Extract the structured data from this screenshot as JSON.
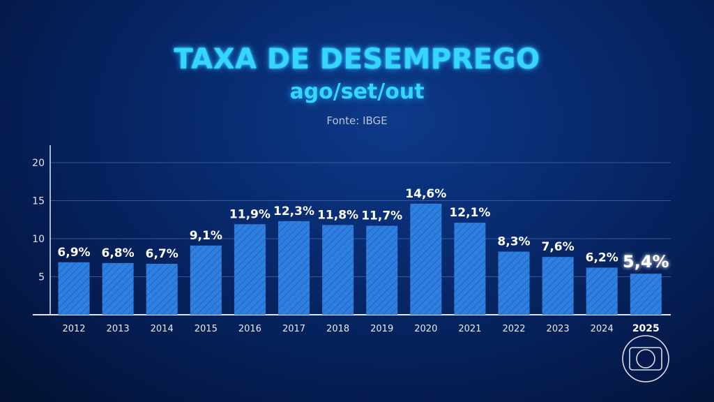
{
  "chart_data": {
    "type": "bar",
    "title": "TAXA DE DESEMPREGO",
    "subtitle": "ago/set/out",
    "source": "Fonte: IBGE",
    "categories": [
      "2012",
      "2013",
      "2014",
      "2015",
      "2016",
      "2017",
      "2018",
      "2019",
      "2020",
      "2021",
      "2022",
      "2023",
      "2024",
      "2025"
    ],
    "values": [
      6.9,
      6.8,
      6.7,
      9.1,
      11.9,
      12.3,
      11.8,
      11.7,
      14.6,
      12.1,
      8.3,
      7.6,
      6.2,
      5.4
    ],
    "data_labels": [
      "6,9%",
      "6,8%",
      "6,7%",
      "9,1%",
      "11,9%",
      "12,3%",
      "11,8%",
      "11,7%",
      "14,6%",
      "12,1%",
      "8,3%",
      "7,6%",
      "6,2%",
      "5,4%"
    ],
    "highlight": "2025",
    "yticks": [
      5,
      10,
      15,
      20
    ],
    "ylim": [
      0,
      20
    ],
    "grid": true,
    "xlabel": "",
    "ylabel": "",
    "bar_color": "#2f7fe0",
    "bar_pattern": "diagonal-hatch"
  },
  "logo": "globo-logo"
}
